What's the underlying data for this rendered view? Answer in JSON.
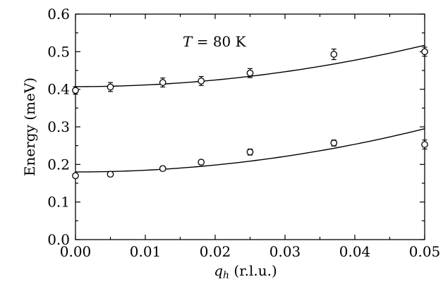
{
  "chart_data": {
    "type": "scatter",
    "title": "",
    "annotation": {
      "var": "T",
      "text": " = 80 K"
    },
    "xlabel": {
      "var": "q",
      "sub": "h",
      "rest": " (r.l.u.)"
    },
    "ylabel": "Energy (meV)",
    "xlim": [
      0.0,
      0.05
    ],
    "ylim": [
      0.0,
      0.6
    ],
    "xticks": [
      "0.00",
      "0.01",
      "0.02",
      "0.03",
      "0.04",
      "0.05"
    ],
    "yticks": [
      "0.0",
      "0.1",
      "0.2",
      "0.3",
      "0.4",
      "0.5",
      "0.6"
    ],
    "grid": false,
    "series": [
      {
        "x": [
          0.0,
          0.005,
          0.0125,
          0.018,
          0.025,
          0.037,
          0.05
        ],
        "y": [
          0.397,
          0.406,
          0.418,
          0.422,
          0.443,
          0.493,
          0.5
        ],
        "yerr": [
          0.01,
          0.012,
          0.012,
          0.012,
          0.012,
          0.014,
          0.012
        ],
        "fit": {
          "a": 0.407,
          "b": 44.0
        }
      },
      {
        "x": [
          0.0,
          0.005,
          0.0125,
          0.018,
          0.025,
          0.037,
          0.05
        ],
        "y": [
          0.17,
          0.174,
          0.189,
          0.206,
          0.233,
          0.257,
          0.253
        ],
        "yerr": [
          0.006,
          0.006,
          0.006,
          0.006,
          0.008,
          0.008,
          0.012
        ],
        "fit": {
          "a": 0.18,
          "b": 46.0
        }
      }
    ]
  }
}
